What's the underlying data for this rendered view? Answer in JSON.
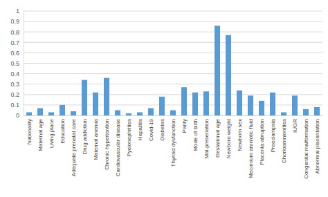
{
  "chart_data": {
    "type": "bar",
    "categories": [
      "Nationality",
      "Maternal age",
      "Living place",
      "Education",
      "Adequate prenatal care",
      "Drug addiction",
      "Maternal anemia",
      "Chronic hypertention",
      "Cardiovascular disease",
      "Pyelonephrities",
      "Hepatitis",
      "Covid-19",
      "Diabetes",
      "Thyroid dysfunction",
      "Parity",
      "Mode of birth",
      "Mal-presenation",
      "Gestational age",
      "Newborn weight",
      "Newborn sex",
      "Meconium amniotic fluid",
      "Placenta abruption",
      "Preeclampsia",
      "Chorioamnionities",
      "IUGR",
      "Congenital malformation",
      "Abnormal placentation"
    ],
    "values": [
      0.03,
      0.07,
      0.03,
      0.1,
      0.04,
      0.34,
      0.22,
      0.36,
      0.05,
      0.02,
      0.03,
      0.07,
      0.18,
      0.05,
      0.27,
      0.22,
      0.23,
      0.86,
      0.77,
      0.24,
      0.19,
      0.14,
      0.22,
      0.03,
      0.19,
      0.06,
      0.08
    ],
    "color": "#5b9bd5",
    "ylim": [
      0,
      1
    ],
    "yticks": [
      0,
      0.1,
      0.2,
      0.3,
      0.4,
      0.5,
      0.6,
      0.7,
      0.8,
      0.9,
      1
    ],
    "grid": true
  }
}
